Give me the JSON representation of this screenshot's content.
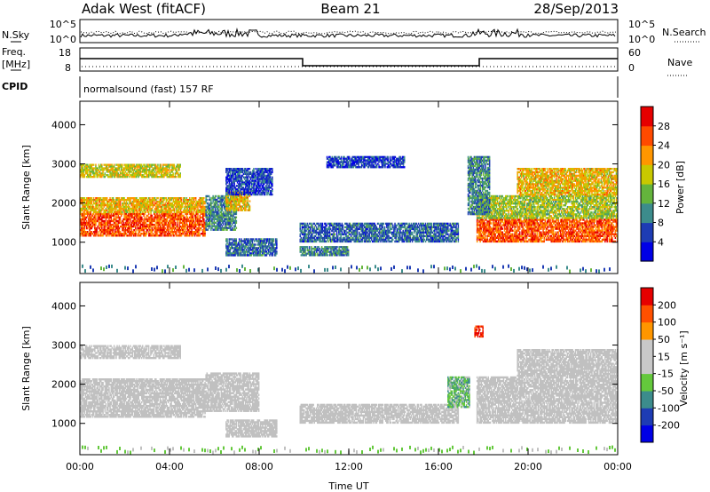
{
  "header": {
    "left": "Adak West (fitACF)",
    "center": "Beam 21",
    "right": "28/Sep/2013"
  },
  "sky_panel": {
    "left_label": "N.Sky",
    "right_label": "N.Search",
    "left_ticks": [
      "10^5",
      "10^0"
    ],
    "right_ticks": [
      "10^5",
      "10^0"
    ]
  },
  "freq_panel": {
    "left_label": "Freq.",
    "left_unit": "[MHz]",
    "right_label": "Nave",
    "left_ticks": [
      "18",
      "8"
    ],
    "right_ticks": [
      "60",
      "0"
    ]
  },
  "cpid": {
    "label": "CPID",
    "value": "normalsound (fast) 157 RF"
  },
  "colors": {
    "power_scale": [
      "#0000e6",
      "#1e3cb4",
      "#3c8c8c",
      "#64b43c",
      "#c8c800",
      "#ff9600",
      "#ff4a00",
      "#e60000"
    ],
    "velocity_scale": [
      "#e60000",
      "#ff5000",
      "#ff9600",
      "#c8c8c8",
      "#c8c8c8",
      "#64c83c",
      "#3c8c8c",
      "#1e3cb4",
      "#0000e6"
    ],
    "ground_scatter": "#c0c0c0"
  },
  "chart_data": [
    {
      "type": "heatmap",
      "name": "power",
      "ylabel": "Slant Range [km]",
      "yticks": [
        "4000",
        "3000",
        "2000",
        "1000"
      ],
      "ylim": [
        200,
        4600
      ],
      "xlim_hours": [
        0,
        24
      ],
      "colorbar": {
        "label": "Power [dB]",
        "ticks": [
          "28",
          "24",
          "20",
          "16",
          "12",
          "8",
          "4"
        ],
        "range": [
          0,
          32
        ]
      },
      "echo_bands": [
        {
          "t0": 0.0,
          "t1": 5.6,
          "r0": 1150,
          "r1": 1750,
          "dB": 26
        },
        {
          "t0": 0.0,
          "t1": 5.6,
          "r0": 1750,
          "r1": 2150,
          "dB": 20
        },
        {
          "t0": 0.0,
          "t1": 4.5,
          "r0": 2650,
          "r1": 3000,
          "dB": 18
        },
        {
          "t0": 5.6,
          "t1": 7.0,
          "r0": 1300,
          "r1": 2200,
          "dB": 10
        },
        {
          "t0": 6.5,
          "t1": 7.6,
          "r0": 1800,
          "r1": 2300,
          "dB": 20
        },
        {
          "t0": 6.5,
          "t1": 8.6,
          "r0": 2200,
          "r1": 2900,
          "dB": 6
        },
        {
          "t0": 6.5,
          "t1": 8.8,
          "r0": 650,
          "r1": 1100,
          "dB": 8
        },
        {
          "t0": 9.8,
          "t1": 16.9,
          "r0": 1000,
          "r1": 1500,
          "dB": 8
        },
        {
          "t0": 9.8,
          "t1": 12.0,
          "r0": 650,
          "r1": 900,
          "dB": 10
        },
        {
          "t0": 11.0,
          "t1": 14.5,
          "r0": 2900,
          "r1": 3200,
          "dB": 5
        },
        {
          "t0": 17.7,
          "t1": 24.0,
          "r0": 1000,
          "r1": 1600,
          "dB": 26
        },
        {
          "t0": 17.7,
          "t1": 24.0,
          "r0": 1600,
          "r1": 2200,
          "dB": 16
        },
        {
          "t0": 19.5,
          "t1": 24.0,
          "r0": 2200,
          "r1": 2900,
          "dB": 20
        },
        {
          "t0": 17.3,
          "t1": 18.3,
          "r0": 1700,
          "r1": 3200,
          "dB": 10
        }
      ]
    },
    {
      "type": "heatmap",
      "name": "velocity",
      "ylabel": "Slant Range [km]",
      "yticks": [
        "4000",
        "3000",
        "2000",
        "1000"
      ],
      "ylim": [
        200,
        4600
      ],
      "xlabel": "Time UT",
      "xticks": [
        "00:00",
        "04:00",
        "08:00",
        "12:00",
        "16:00",
        "20:00",
        "00:00"
      ],
      "xlim_hours": [
        0,
        24
      ],
      "colorbar": {
        "label": "Velocity [m s⁻¹]",
        "ticks": [
          "200",
          "100",
          "50",
          "15",
          "-15",
          "-50",
          "-100",
          "-200"
        ],
        "range": [
          -250,
          250
        ]
      },
      "echo_bands": [
        {
          "t0": 0.0,
          "t1": 5.6,
          "r0": 1150,
          "r1": 1750,
          "v": 0
        },
        {
          "t0": 0.0,
          "t1": 5.6,
          "r0": 1750,
          "r1": 2150,
          "v": 0
        },
        {
          "t0": 0.0,
          "t1": 4.5,
          "r0": 2650,
          "r1": 3000,
          "v": 0
        },
        {
          "t0": 5.6,
          "t1": 8.0,
          "r0": 1300,
          "r1": 2300,
          "v": 0
        },
        {
          "t0": 6.5,
          "t1": 8.8,
          "r0": 650,
          "r1": 1100,
          "v": 0
        },
        {
          "t0": 9.8,
          "t1": 16.9,
          "r0": 1000,
          "r1": 1500,
          "v": 0
        },
        {
          "t0": 17.7,
          "t1": 24.0,
          "r0": 1000,
          "r1": 1600,
          "v": 0
        },
        {
          "t0": 17.7,
          "t1": 24.0,
          "r0": 1600,
          "r1": 2200,
          "v": 0
        },
        {
          "t0": 19.5,
          "t1": 24.0,
          "r0": 2200,
          "r1": 2900,
          "v": 0
        },
        {
          "t0": 16.4,
          "t1": 17.4,
          "r0": 1400,
          "r1": 2200,
          "v": 40
        },
        {
          "t0": 17.6,
          "t1": 18.0,
          "r0": 3200,
          "r1": 3500,
          "v": -200
        }
      ]
    }
  ]
}
